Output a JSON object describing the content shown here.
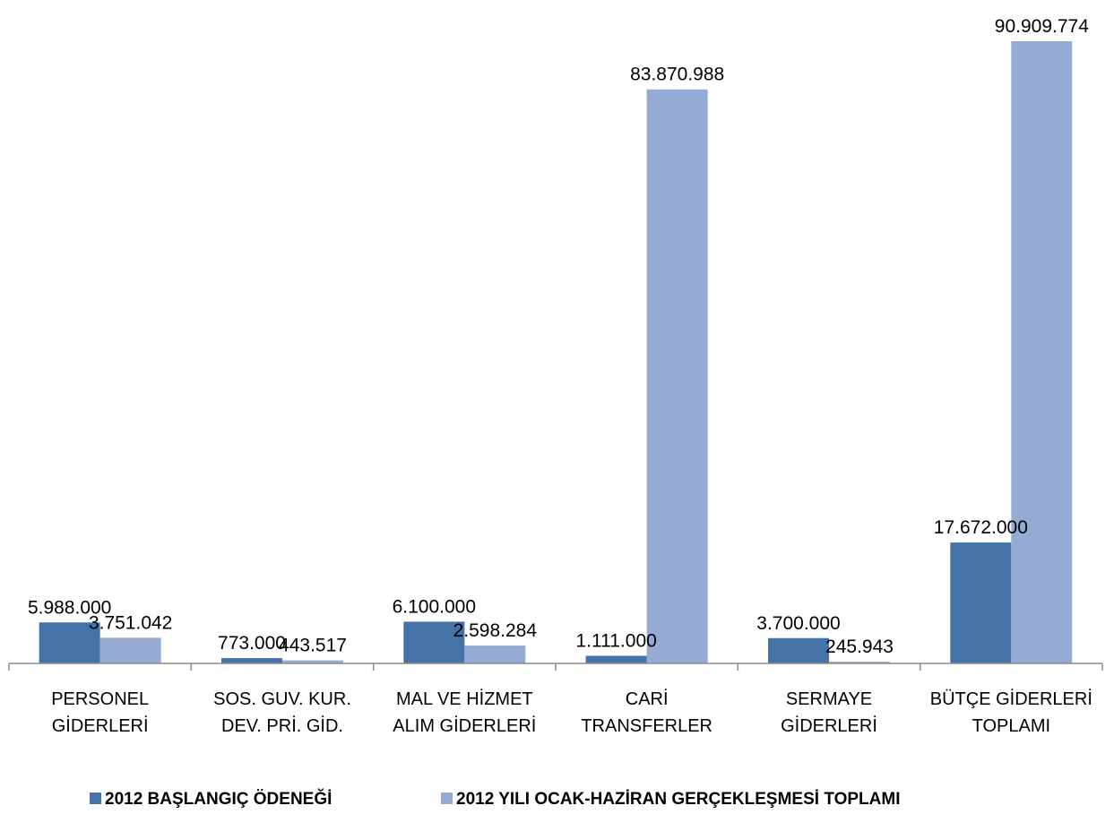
{
  "chart_data": {
    "type": "bar",
    "categories": [
      [
        "PERSONEL",
        "GİDERLERİ"
      ],
      [
        "SOS. GUV. KUR.",
        "DEV. PRİ. GİD."
      ],
      [
        "MAL VE HİZMET",
        "ALIM GİDERLERİ"
      ],
      [
        "CARİ",
        "TRANSFERLER"
      ],
      [
        "SERMAYE",
        "GİDERLERİ"
      ],
      [
        "BÜTÇE GİDERLERİ",
        "TOPLAMI"
      ]
    ],
    "series": [
      {
        "name": "2012 BAŞLANGIÇ ÖDENEĞİ",
        "color": "#4572A7",
        "values": [
          5988000,
          773000,
          6100000,
          1111000,
          3700000,
          17672000
        ],
        "labels": [
          "5.988.000",
          "773.000",
          "6.100.000",
          "1.111.000",
          "3.700.000",
          "17.672.000"
        ]
      },
      {
        "name": "2012 YILI OCAK-HAZİRAN GERÇEKLEŞMESİ TOPLAMI",
        "color": "#95ABD3",
        "values": [
          3751042,
          443517,
          2598284,
          83870988,
          245943,
          90909774
        ],
        "labels": [
          "3.751.042",
          "443.517",
          "2.598.284",
          "83.870.988",
          "245.943",
          "90.909.774"
        ]
      }
    ],
    "ylim": [
      0,
      90909774
    ],
    "grid": false,
    "legend_position": "bottom"
  }
}
